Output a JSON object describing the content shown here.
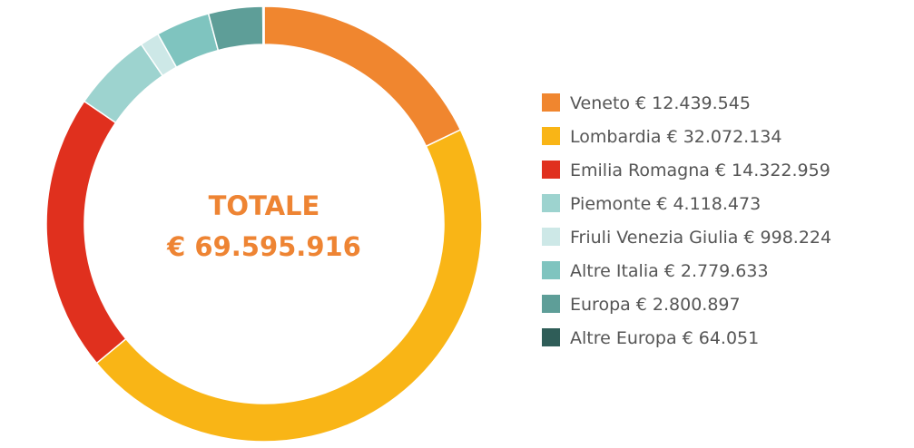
{
  "chart_data": {
    "type": "pie",
    "donut": true,
    "center_title": "TOTALE",
    "center_total": "€ 69.595.916",
    "categories": [
      "Veneto",
      "Lombardia",
      "Emilia Romagna",
      "Piemonte",
      "Friuli Venezia Giulia",
      "Altre Italia",
      "Europa",
      "Altre Europa"
    ],
    "values": [
      12439545,
      32072134,
      14322959,
      4118473,
      998224,
      2779633,
      2800897,
      64051
    ],
    "value_labels": [
      "€ 12.439.545",
      "€ 32.072.134",
      "€ 14.322.959",
      "€ 4.118.473",
      "€ 998.224",
      "€ 2.779.633",
      "€ 2.800.897",
      "€ 64.051"
    ],
    "colors": [
      "#f0862f",
      "#f9b516",
      "#e0301e",
      "#9dd3cf",
      "#cde8e7",
      "#7fc4bf",
      "#5e9e98",
      "#2f5d58"
    ],
    "legend": "right"
  }
}
